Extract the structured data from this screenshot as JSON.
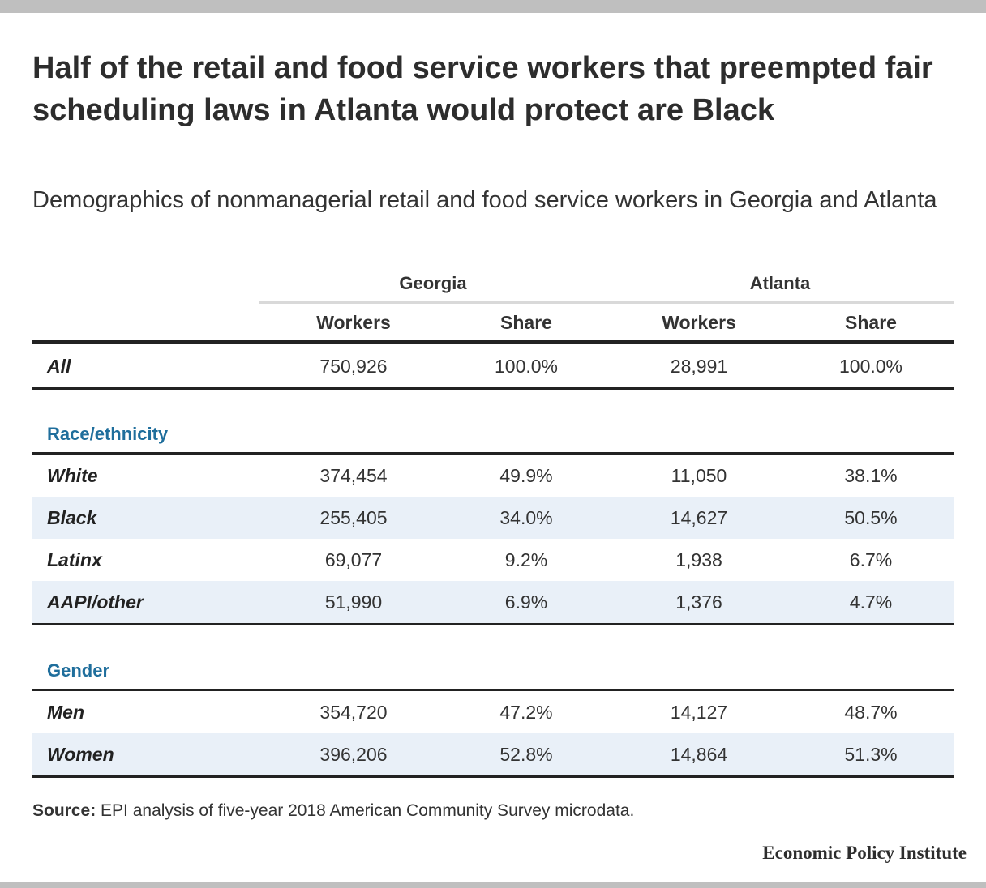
{
  "title": "Half of the retail and food service workers that preempted fair scheduling laws in Atlanta would protect are Black",
  "subtitle": "Demographics of nonmanagerial retail and food service workers in Georgia and Atlanta",
  "source_label": "Source:",
  "source_text": " EPI analysis of five-year 2018 American Community Survey microdata.",
  "brand": "Economic Policy Institute",
  "colors": {
    "section_label": "#1f6e9c",
    "row_shade": "#e9f0f8",
    "rule": "#222222",
    "group_rule": "#d9d9d9"
  },
  "chart_data": {
    "type": "table",
    "column_groups": [
      "Georgia",
      "Atlanta"
    ],
    "columns": [
      "Workers",
      "Share",
      "Workers",
      "Share"
    ],
    "total_row": {
      "label": "All",
      "values": [
        "750,926",
        "100.0%",
        "28,991",
        "100.0%"
      ]
    },
    "sections": [
      {
        "title": "Race/ethnicity",
        "rows": [
          {
            "label": "White",
            "values": [
              "374,454",
              "49.9%",
              "11,050",
              "38.1%"
            ]
          },
          {
            "label": "Black",
            "values": [
              "255,405",
              "34.0%",
              "14,627",
              "50.5%"
            ]
          },
          {
            "label": "Latinx",
            "values": [
              "69,077",
              "9.2%",
              "1,938",
              "6.7%"
            ]
          },
          {
            "label": "AAPI/other",
            "values": [
              "51,990",
              "6.9%",
              "1,376",
              "4.7%"
            ]
          }
        ]
      },
      {
        "title": "Gender",
        "rows": [
          {
            "label": "Men",
            "values": [
              "354,720",
              "47.2%",
              "14,127",
              "48.7%"
            ]
          },
          {
            "label": "Women",
            "values": [
              "396,206",
              "52.8%",
              "14,864",
              "51.3%"
            ]
          }
        ]
      }
    ]
  }
}
